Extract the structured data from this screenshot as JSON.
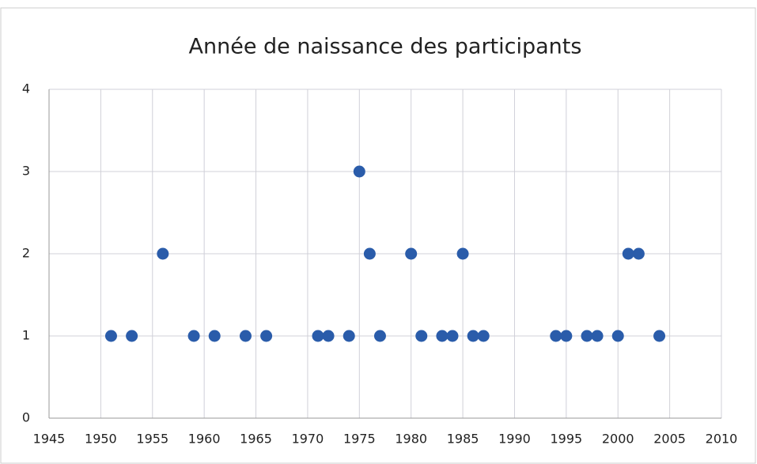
{
  "chart_data": {
    "type": "scatter",
    "title": "Année de naissance des participants",
    "series": [
      {
        "color": "#2a5caa",
        "x": [
          1951,
          1953,
          1956,
          1959,
          1961,
          1964,
          1966,
          1971,
          1972,
          1974,
          1975,
          1976,
          1977,
          1980,
          1981,
          1983,
          1984,
          1985,
          1986,
          1987,
          1994,
          1995,
          1997,
          1998,
          2000,
          2001,
          2002,
          2004
        ],
        "values": [
          1,
          1,
          2,
          1,
          1,
          1,
          1,
          1,
          1,
          1,
          3,
          2,
          1,
          2,
          1,
          1,
          1,
          2,
          1,
          1,
          1,
          1,
          1,
          1,
          1,
          2,
          2,
          1
        ]
      }
    ],
    "xlim": [
      1945,
      2010
    ],
    "xticks": [
      1945,
      1950,
      1955,
      1960,
      1965,
      1970,
      1975,
      1980,
      1985,
      1990,
      1995,
      2000,
      2005,
      2010
    ],
    "ylim": [
      0,
      4
    ],
    "yticks": [
      0,
      1,
      2,
      3,
      4
    ],
    "grid": true
  }
}
